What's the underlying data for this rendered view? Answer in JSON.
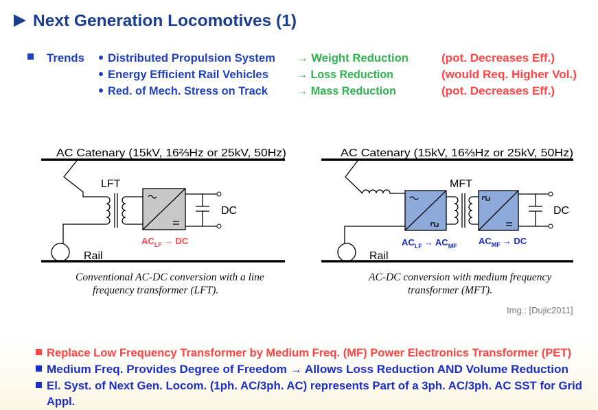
{
  "header": {
    "title": "Next Generation Locomotives (1)"
  },
  "trends": {
    "label": "Trends",
    "rows": [
      {
        "item": "Distributed Propulsion System",
        "effect": "→ Weight Reduction",
        "note": "(pot. Decreases Eff.)"
      },
      {
        "item": "Energy Efficient Rail Vehicles",
        "effect": "→ Loss Reduction",
        "note": "(would Req. Higher Vol.)"
      },
      {
        "item": "Red. of Mech. Stress on Track",
        "effect": "→ Mass Reduction",
        "note": "(pot. Decreases Eff.)"
      }
    ]
  },
  "diagrams": [
    {
      "supply": "AC Catenary (15kV, 16⅔Hz or 25kV, 50Hz)",
      "transformer": "LFT",
      "output": "DC",
      "ground": "Rail",
      "stages": [
        [
          "AC",
          "LF",
          "→ DC"
        ]
      ],
      "caption": [
        "Conventional AC-DC conversion with a line",
        "frequency transformer (LFT)."
      ]
    },
    {
      "supply": "AC Catenary (15kV, 16⅔Hz or 25kV, 50Hz)",
      "transformer": "MFT",
      "output": "DC",
      "ground": "Rail",
      "stages": [
        [
          "AC",
          "LF",
          "→ AC",
          "MF"
        ],
        [
          "AC",
          "MF",
          "→ DC"
        ]
      ],
      "caption": [
        "AC-DC conversion with medium frequency",
        "transformer (MFT)."
      ]
    }
  ],
  "credit": "Img.: [Dujic2011]",
  "bullets": [
    [
      "Replace Low Frequency Transformer by Medium Freq. (MF) Power Electronics Transformer (PET)"
    ],
    [
      "Medium Freq. Provides Degree of Freedom → Allows Loss Reduction AND Volume Reduction"
    ],
    [
      "El. Syst. of Next Gen. Locom. (1ph. AC/3ph. AC) represents Part of a 3ph. AC/3ph. AC SST for Grid",
      "Appl."
    ]
  ]
}
